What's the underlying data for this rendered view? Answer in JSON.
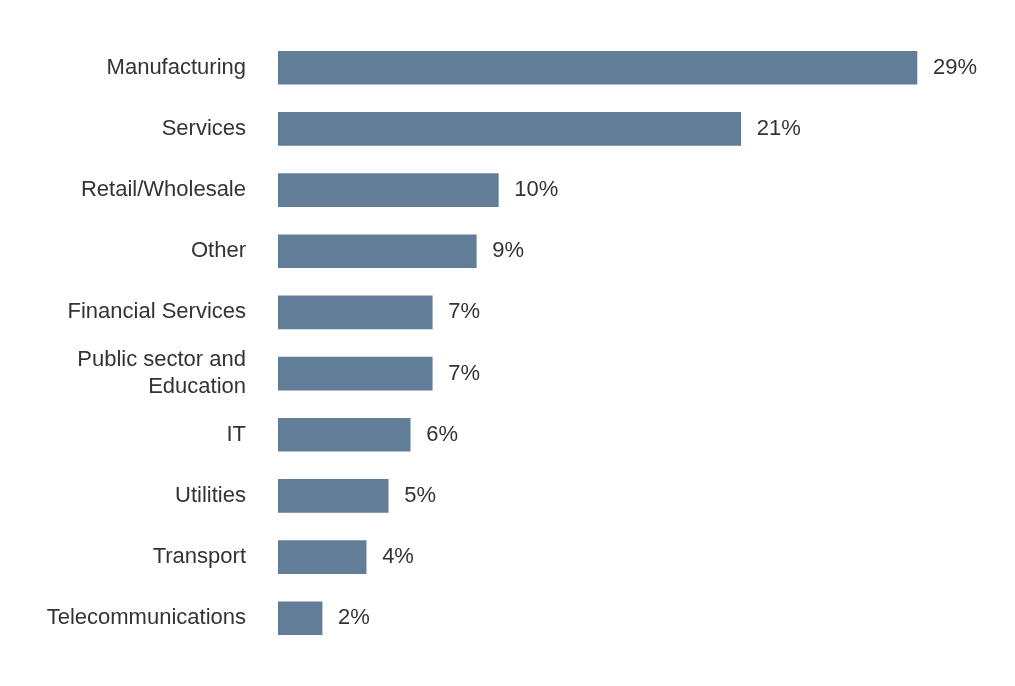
{
  "chart_data": {
    "type": "bar",
    "orientation": "horizontal",
    "categories": [
      "Manufacturing",
      "Services",
      "Retail/Wholesale",
      "Other",
      "Financial Services",
      "Public sector and Education",
      "IT",
      "Utilities",
      "Transport",
      "Telecommunications"
    ],
    "values": [
      29,
      21,
      10,
      9,
      7,
      7,
      6,
      5,
      4,
      2
    ],
    "value_labels": [
      "29%",
      "21%",
      "10%",
      "9%",
      "7%",
      "7%",
      "6%",
      "5%",
      "4%",
      "2%"
    ],
    "color": "#627d98"
  }
}
